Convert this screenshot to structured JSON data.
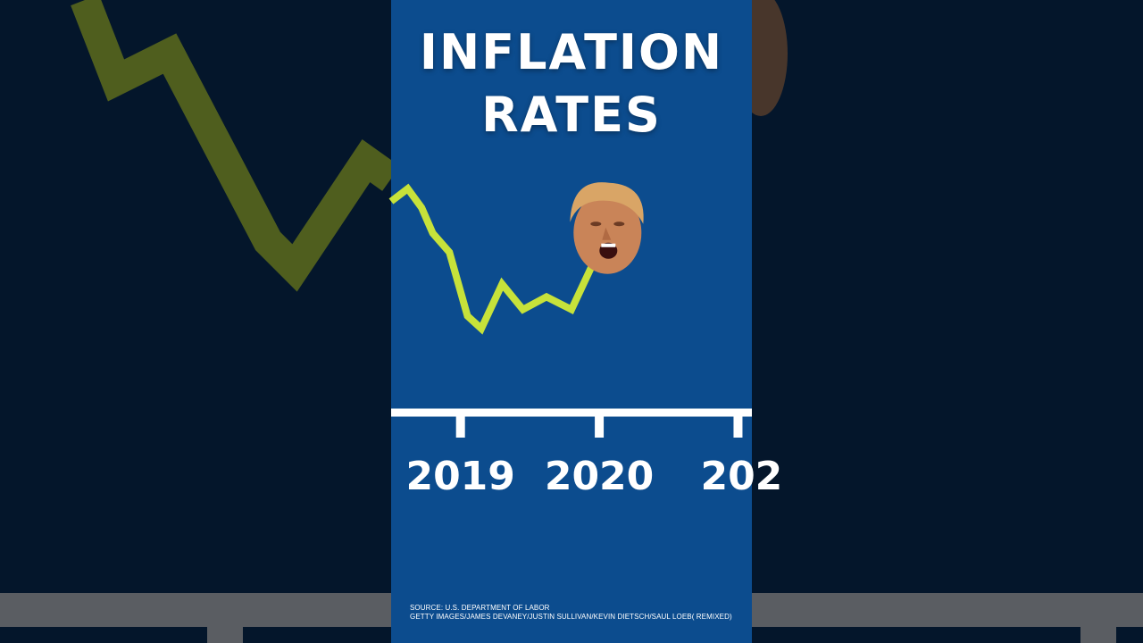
{
  "title_line1": "INFLATION",
  "title_line2": "RATES",
  "source_line": "SOURCE: U.S. DEPARTMENT OF LABOR",
  "credit_line": "GETTY IMAGES/JAMES DEVANEY/JUSTIN SULLIVAN/KEVIN DIETSCH/SAUL LOEB( REMIXED)",
  "colors": {
    "panel_bg": "#0c4c8e",
    "line": "#c7e23a",
    "axis": "#ffffff",
    "side_bg": "#04162b"
  },
  "icons": {
    "face": "person-face-icon"
  },
  "chart_data": {
    "type": "line",
    "title": "INFLATION RATES",
    "xlabel": "",
    "ylabel": "",
    "x_ticks": [
      "2019",
      "2020",
      "202"
    ],
    "xlim": [
      2018.5,
      2021.1
    ],
    "ylim": [
      0,
      4
    ],
    "grid": false,
    "series": [
      {
        "x": [
          2018.5,
          2018.62,
          2018.72,
          2018.8,
          2018.92,
          2019.05,
          2019.15,
          2019.3,
          2019.45,
          2019.62,
          2019.8,
          2019.95
        ],
        "values": [
          2.8,
          3.0,
          2.7,
          2.3,
          2.0,
          1.0,
          0.8,
          1.5,
          1.1,
          1.3,
          1.1,
          1.8
        ]
      }
    ]
  }
}
